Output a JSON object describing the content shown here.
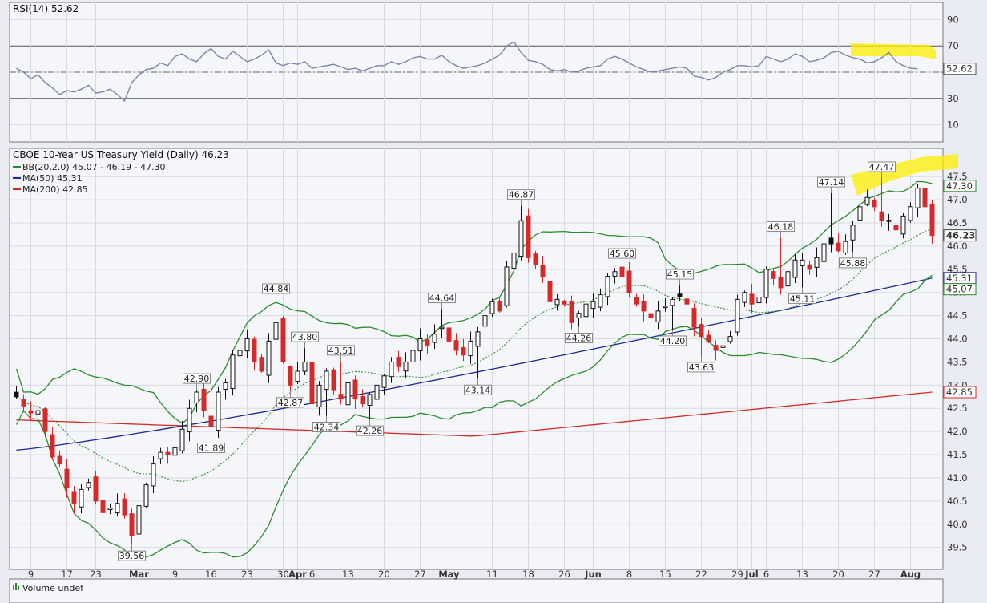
{
  "rsi_panel": {
    "title": "RSI(14) 52.62",
    "current_label": "52.62",
    "ticks": [
      90,
      70,
      50,
      30,
      10
    ],
    "overbought": 70,
    "oversold": 30,
    "mid": 50
  },
  "price_panel": {
    "title": "CBOE 10-Year US Treasury Yield (Daily) 46.23",
    "legend": [
      {
        "label": "BB(20,2.0) 45.07 - 46.19 - 47.30",
        "color": "#2f8a2f"
      },
      {
        "label": "MA(50) 45.31",
        "color": "#1f2a8f"
      },
      {
        "label": "MA(200) 42.85",
        "color": "#d62a2a"
      }
    ],
    "right_labels": [
      {
        "text": "47.30",
        "value": 47.3,
        "border": "#2f8a2f"
      },
      {
        "text": "46.23",
        "value": 46.23,
        "border": "#444444"
      },
      {
        "text": "45.31",
        "value": 45.31,
        "border": "#1f2a8f"
      },
      {
        "text": "45.07",
        "value": 45.07,
        "border": "#2f8a2f"
      },
      {
        "text": "42.85",
        "value": 42.85,
        "border": "#d62a2a"
      }
    ]
  },
  "x_axis_labels": [
    {
      "text": "9",
      "bar": 2,
      "bold": false
    },
    {
      "text": "17",
      "bar": 7,
      "bold": false
    },
    {
      "text": "23",
      "bar": 11,
      "bold": false
    },
    {
      "text": "Mar",
      "bar": 17,
      "bold": true
    },
    {
      "text": "9",
      "bar": 22,
      "bold": false
    },
    {
      "text": "16",
      "bar": 27,
      "bold": false
    },
    {
      "text": "23",
      "bar": 32,
      "bold": false
    },
    {
      "text": "30",
      "bar": 37,
      "bold": false
    },
    {
      "text": "Apr",
      "bar": 39,
      "bold": true
    },
    {
      "text": "6",
      "bar": 41,
      "bold": false
    },
    {
      "text": "13",
      "bar": 46,
      "bold": false
    },
    {
      "text": "20",
      "bar": 51,
      "bold": false
    },
    {
      "text": "27",
      "bar": 56,
      "bold": false
    },
    {
      "text": "May",
      "bar": 60,
      "bold": true
    },
    {
      "text": "11",
      "bar": 66,
      "bold": false
    },
    {
      "text": "18",
      "bar": 71,
      "bold": false
    },
    {
      "text": "26",
      "bar": 76,
      "bold": false
    },
    {
      "text": "Jun",
      "bar": 80,
      "bold": true
    },
    {
      "text": "8",
      "bar": 85,
      "bold": false
    },
    {
      "text": "15",
      "bar": 90,
      "bold": false
    },
    {
      "text": "22",
      "bar": 95,
      "bold": false
    },
    {
      "text": "29",
      "bar": 100,
      "bold": false
    },
    {
      "text": "Jul",
      "bar": 102,
      "bold": true
    },
    {
      "text": "6",
      "bar": 104,
      "bold": false
    },
    {
      "text": "13",
      "bar": 109,
      "bold": false
    },
    {
      "text": "20",
      "bar": 114,
      "bold": false
    },
    {
      "text": "27",
      "bar": 119,
      "bold": false
    },
    {
      "text": "Aug",
      "bar": 124,
      "bold": true
    }
  ],
  "volume_panel": {
    "title": "Volume undef"
  },
  "highlight_color": "#ffee00",
  "chart_data": {
    "type": "candlestick",
    "symbol": "CBOE 10-Year US Treasury Yield (Daily)",
    "price_axis_ticks": [
      47.5,
      47.0,
      46.5,
      46.0,
      45.5,
      45.0,
      44.5,
      44.0,
      43.5,
      43.0,
      42.5,
      42.0,
      41.5,
      41.0,
      40.5,
      40.0,
      39.5
    ],
    "ylim": [
      39.2,
      47.85
    ],
    "close": [
      42.75,
      42.55,
      42.4,
      42.45,
      42.0,
      41.45,
      41.3,
      40.8,
      40.45,
      40.75,
      40.9,
      40.5,
      40.25,
      40.35,
      40.45,
      40.2,
      39.75,
      40.4,
      40.85,
      41.3,
      41.55,
      41.5,
      41.65,
      42.05,
      42.5,
      42.85,
      42.45,
      42.1,
      42.85,
      43.05,
      43.65,
      43.75,
      44.0,
      43.5,
      43.3,
      43.95,
      44.35,
      43.5,
      43.0,
      43.3,
      43.5,
      42.6,
      43.0,
      43.3,
      42.9,
      42.7,
      43.05,
      42.7,
      42.6,
      42.8,
      43.0,
      43.2,
      43.5,
      43.4,
      43.5,
      43.75,
      44.0,
      43.85,
      44.1,
      44.25,
      43.95,
      43.75,
      43.65,
      43.95,
      44.15,
      44.5,
      44.8,
      44.6,
      45.55,
      45.85,
      46.55,
      45.75,
      45.6,
      45.35,
      44.8,
      44.85,
      44.75,
      44.35,
      44.55,
      44.75,
      44.8,
      44.95,
      45.35,
      45.45,
      45.35,
      45.0,
      44.75,
      44.6,
      44.45,
      44.6,
      44.7,
      44.85,
      44.9,
      44.75,
      44.25,
      44.05,
      43.95,
      43.75,
      43.85,
      44.05,
      44.85,
      45.0,
      44.75,
      44.9,
      45.5,
      45.3,
      45.1,
      45.45,
      45.7,
      45.7,
      45.5,
      45.75,
      46.05,
      46.05,
      45.9,
      46.1,
      46.45,
      46.85,
      47.05,
      46.85,
      46.55,
      46.55,
      46.35,
      46.65,
      46.85,
      47.25,
      46.85,
      46.23
    ],
    "bollinger": {
      "lower": 45.07,
      "middle": 46.19,
      "upper": 47.3
    },
    "ma50_last": 45.31,
    "ma200_last": 42.85,
    "annotations": [
      {
        "text": "39.56",
        "bar": 16,
        "value": 39.56,
        "side": "below"
      },
      {
        "text": "41.89",
        "bar": 27,
        "value": 41.89,
        "side": "below"
      },
      {
        "text": "42.90",
        "bar": 25,
        "value": 42.9,
        "side": "above"
      },
      {
        "text": "44.84",
        "bar": 36,
        "value": 44.84,
        "side": "above"
      },
      {
        "text": "42.87",
        "bar": 38,
        "value": 42.87,
        "side": "below"
      },
      {
        "text": "43.80",
        "bar": 40,
        "value": 43.8,
        "side": "above"
      },
      {
        "text": "42.34",
        "bar": 43,
        "value": 42.34,
        "side": "below"
      },
      {
        "text": "43.51",
        "bar": 45,
        "value": 43.51,
        "side": "above"
      },
      {
        "text": "42.26",
        "bar": 49,
        "value": 42.26,
        "side": "below"
      },
      {
        "text": "44.64",
        "bar": 59,
        "value": 44.64,
        "side": "above"
      },
      {
        "text": "43.14",
        "bar": 64,
        "value": 43.14,
        "side": "below"
      },
      {
        "text": "46.87",
        "bar": 70,
        "value": 46.87,
        "side": "above"
      },
      {
        "text": "44.26",
        "bar": 78,
        "value": 44.26,
        "side": "below"
      },
      {
        "text": "45.60",
        "bar": 84,
        "value": 45.6,
        "side": "above"
      },
      {
        "text": "44.20",
        "bar": 91,
        "value": 44.2,
        "side": "below"
      },
      {
        "text": "45.15",
        "bar": 92,
        "value": 45.15,
        "side": "above"
      },
      {
        "text": "43.63",
        "bar": 95,
        "value": 43.63,
        "side": "below"
      },
      {
        "text": "46.18",
        "bar": 106,
        "value": 46.18,
        "side": "above"
      },
      {
        "text": "45.11",
        "bar": 109,
        "value": 45.11,
        "side": "below"
      },
      {
        "text": "47.14",
        "bar": 113,
        "value": 47.14,
        "side": "above"
      },
      {
        "text": "45.88",
        "bar": 116,
        "value": 45.88,
        "side": "below"
      },
      {
        "text": "47.47",
        "bar": 120,
        "value": 47.47,
        "side": "above"
      }
    ],
    "rsi": [
      53,
      50,
      45,
      48,
      42,
      38,
      33,
      36,
      35,
      37,
      40,
      34,
      35,
      37,
      33,
      28,
      42,
      48,
      52,
      53,
      57,
      55,
      62,
      64,
      60,
      58,
      64,
      68,
      62,
      60,
      66,
      62,
      58,
      60,
      63,
      67,
      57,
      55,
      57,
      56,
      58,
      53,
      54,
      55,
      56,
      54,
      52,
      53,
      51,
      53,
      55,
      55,
      58,
      56,
      58,
      61,
      62,
      60,
      60,
      63,
      58,
      55,
      53,
      54,
      55,
      57,
      60,
      63,
      70,
      73,
      65,
      59,
      58,
      56,
      52,
      51,
      52,
      50,
      51,
      53,
      54,
      55,
      60,
      62,
      60,
      57,
      54,
      52,
      50,
      51,
      52,
      53,
      54,
      53,
      47,
      46,
      44,
      46,
      50,
      52,
      55,
      55,
      54,
      55,
      62,
      60,
      58,
      60,
      64,
      62,
      58,
      59,
      61,
      65,
      66,
      63,
      61,
      60,
      57,
      58,
      61,
      65,
      58,
      55,
      53,
      52.62
    ]
  }
}
